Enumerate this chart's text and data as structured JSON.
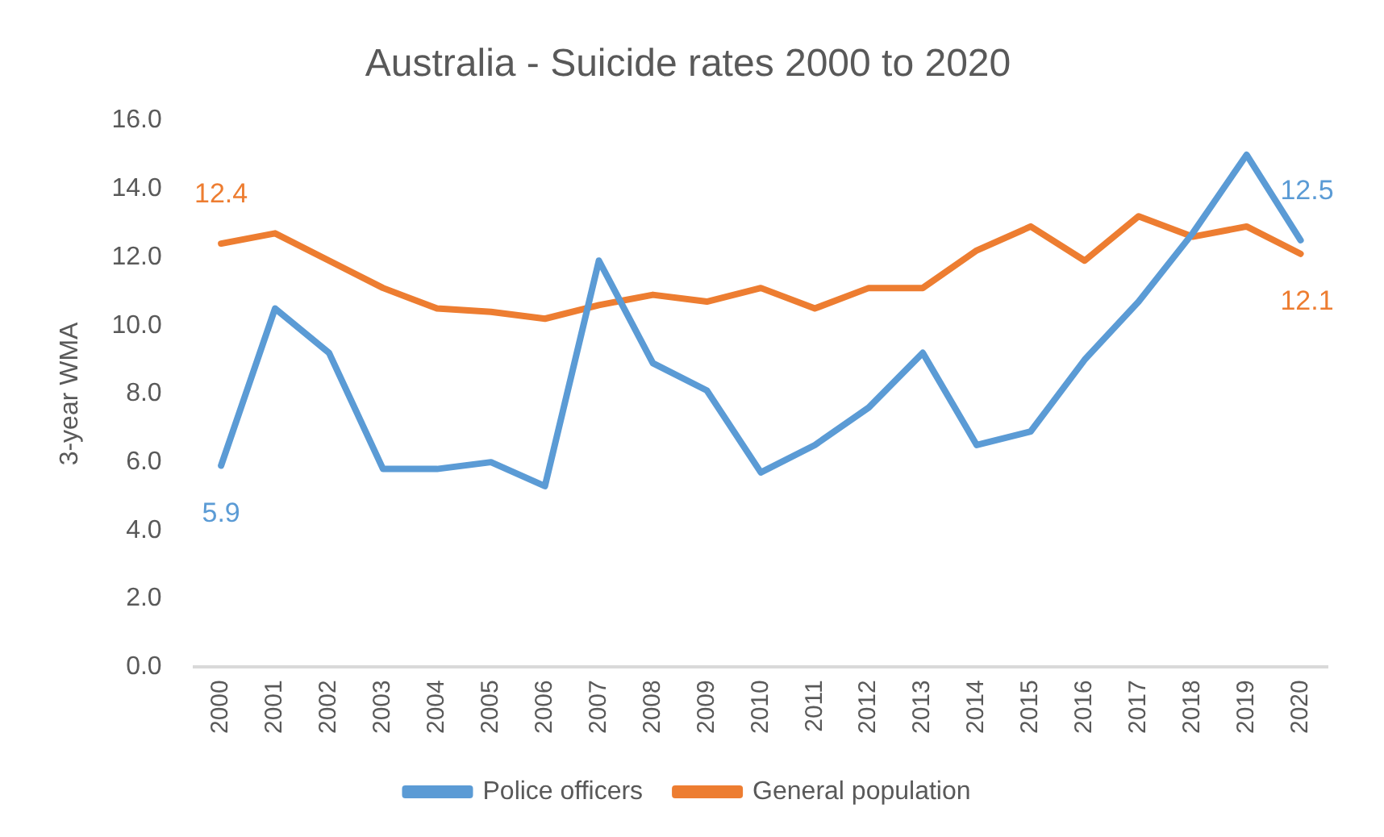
{
  "chart_data": {
    "type": "line",
    "title": "Australia - Suicide rates 2000 to 2020",
    "ylabel": "3-year WMA",
    "categories": [
      "2000",
      "2001",
      "2002",
      "2003",
      "2004",
      "2005",
      "2006",
      "2007",
      "2008",
      "2009",
      "2010",
      "2011",
      "2012",
      "2013",
      "2014",
      "2015",
      "2016",
      "2017",
      "2018",
      "2019",
      "2020"
    ],
    "series": [
      {
        "name": "Police officers",
        "color": "#5b9bd5",
        "values": [
          5.9,
          10.5,
          9.2,
          5.8,
          5.8,
          6.0,
          5.3,
          11.9,
          8.9,
          8.1,
          5.7,
          6.5,
          7.6,
          9.2,
          6.5,
          6.9,
          9.0,
          10.7,
          12.7,
          15.0,
          12.5
        ],
        "value_labels": [
          "5.9",
          null,
          null,
          null,
          null,
          null,
          null,
          null,
          null,
          null,
          null,
          null,
          null,
          null,
          null,
          null,
          null,
          null,
          null,
          null,
          "12.5"
        ]
      },
      {
        "name": "General population",
        "color": "#ed7d31",
        "values": [
          12.4,
          12.7,
          11.9,
          11.1,
          10.5,
          10.4,
          10.2,
          10.6,
          10.9,
          10.7,
          11.1,
          10.5,
          11.1,
          11.1,
          12.2,
          12.9,
          11.9,
          13.2,
          12.6,
          12.9,
          12.1
        ],
        "value_labels": [
          "12.4",
          null,
          null,
          null,
          null,
          null,
          null,
          null,
          null,
          null,
          null,
          null,
          null,
          null,
          null,
          null,
          null,
          null,
          null,
          null,
          "12.1"
        ]
      }
    ],
    "ylim": [
      0,
      16
    ],
    "yticks": [
      {
        "value": 0,
        "label": "0.0"
      },
      {
        "value": 2,
        "label": "2.0"
      },
      {
        "value": 4,
        "label": "4.0"
      },
      {
        "value": 6,
        "label": "6.0"
      },
      {
        "value": 8,
        "label": "8.0"
      },
      {
        "value": 10,
        "label": "10.0"
      },
      {
        "value": 12,
        "label": "12.0"
      },
      {
        "value": 14,
        "label": "14.0"
      },
      {
        "value": 16,
        "label": "16.0"
      }
    ],
    "grid": false,
    "legend": "bottom",
    "marker": "none",
    "line_style": "solid"
  }
}
